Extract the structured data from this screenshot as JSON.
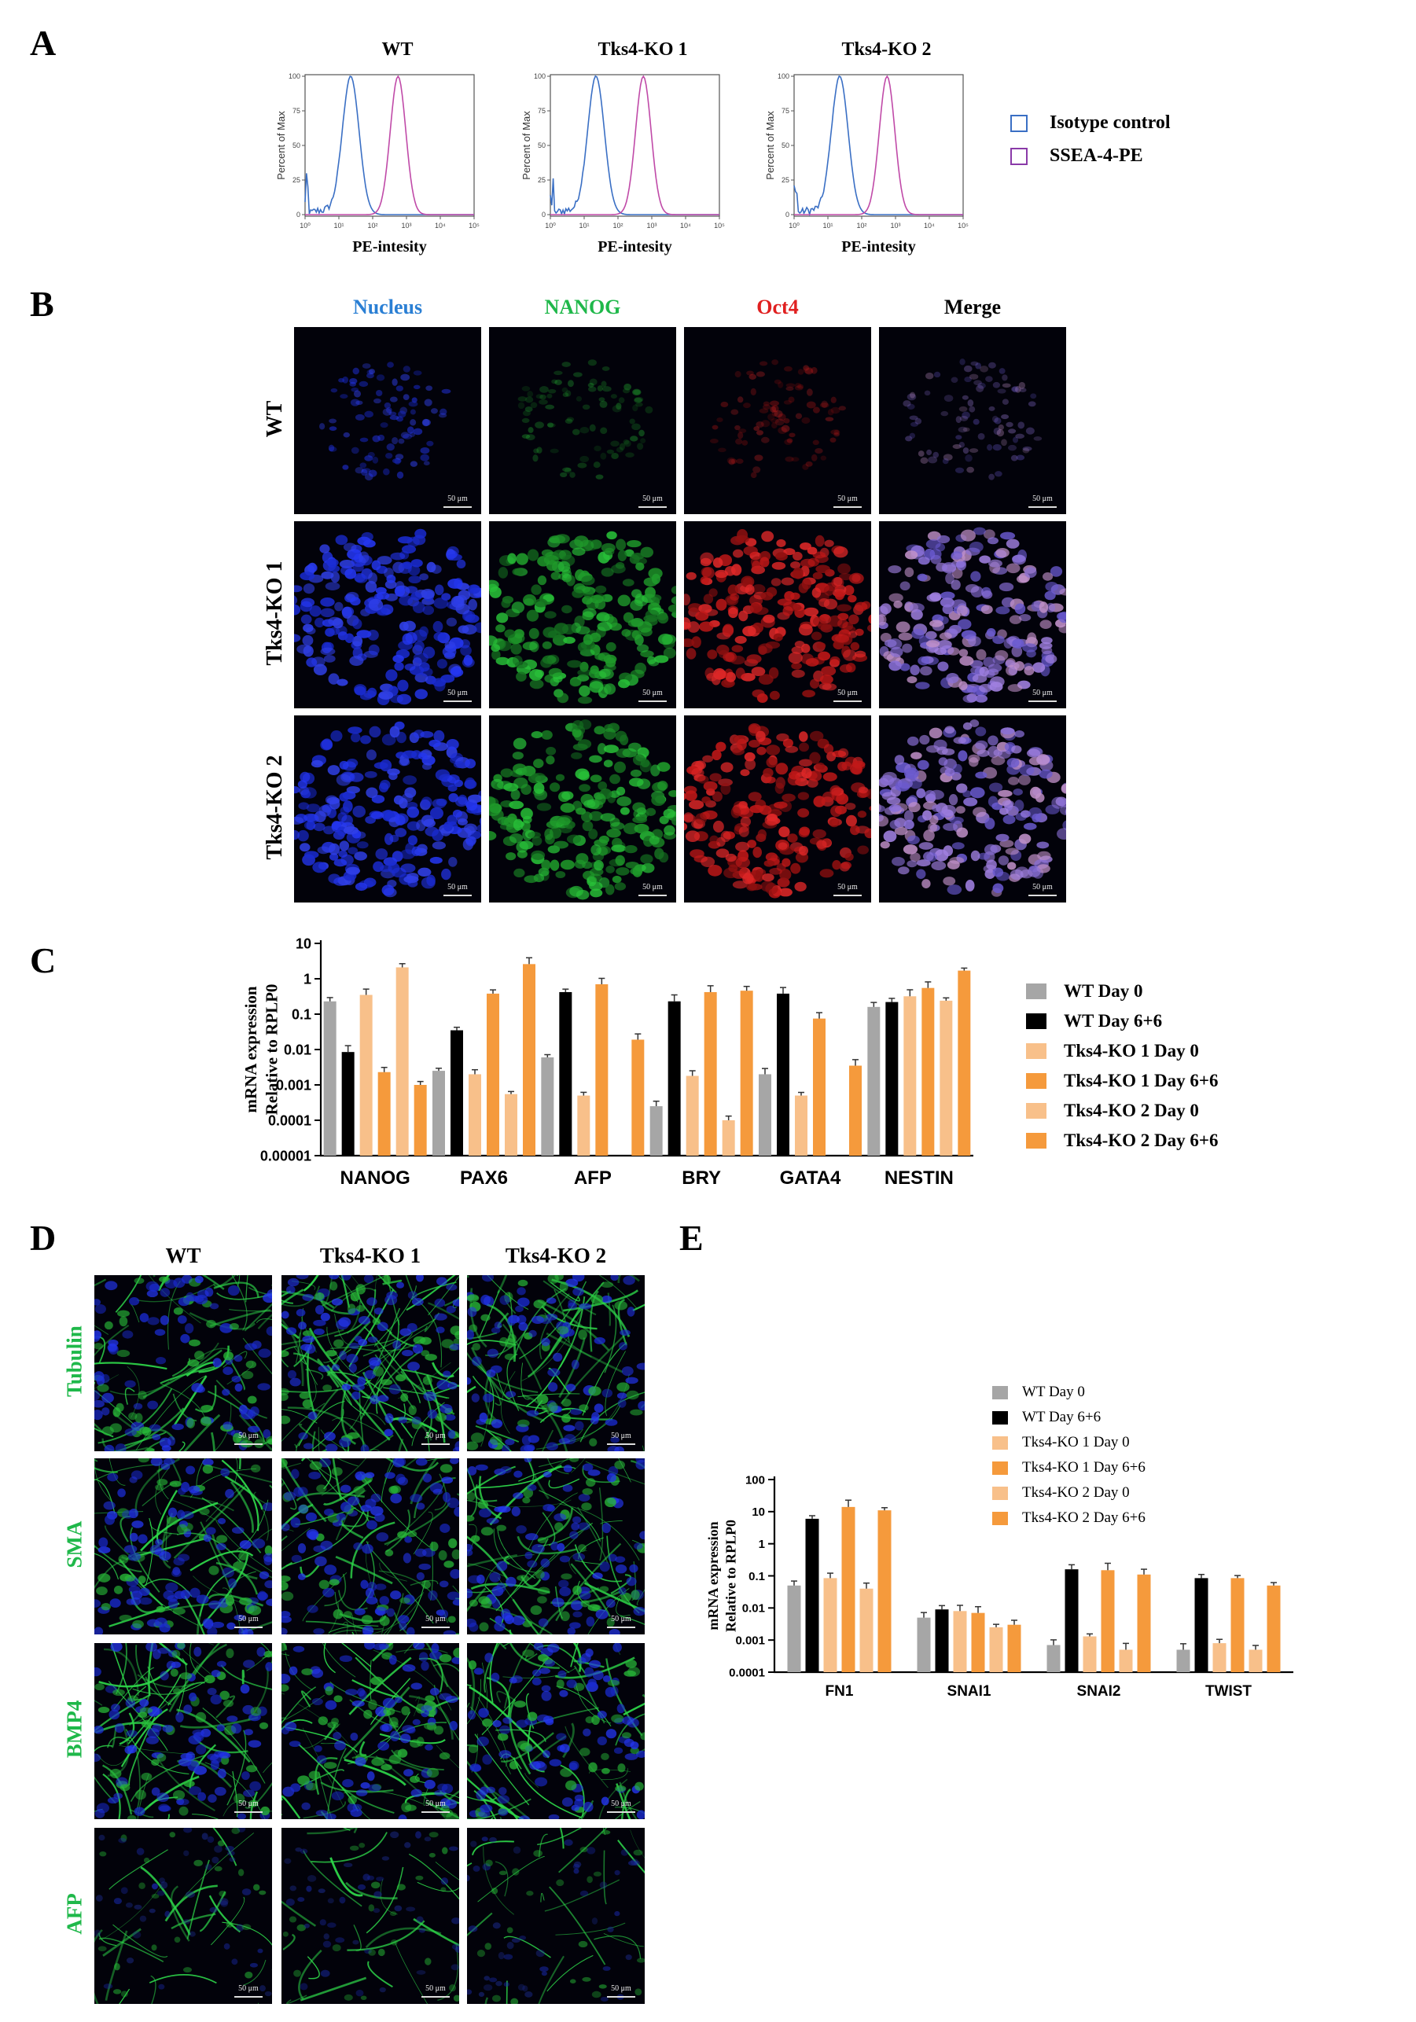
{
  "panels": {
    "a": "A",
    "b": "B",
    "c": "C",
    "d": "D",
    "e": "E"
  },
  "panel_a": {
    "plots": [
      {
        "title": "WT"
      },
      {
        "title": "Tks4-KO 1"
      },
      {
        "title": "Tks4-KO 2"
      }
    ],
    "ylabel": "Percent of Max",
    "xlabel": "PE-intesity",
    "yticks": [
      "100",
      "75",
      "50",
      "25",
      "0"
    ],
    "xticks": [
      "10⁰",
      "10¹",
      "10²",
      "10³",
      "10⁴",
      "10⁵"
    ],
    "legend": [
      {
        "label": "Isotype control",
        "color": "#3a6fc4"
      },
      {
        "label": "SSEA-4-PE",
        "color": "#8a3aa8"
      }
    ]
  },
  "panel_b": {
    "columns": [
      {
        "label": "Nucleus",
        "color": "#2a7fd4"
      },
      {
        "label": "NANOG",
        "color": "#1fb84a"
      },
      {
        "label": "Oct4",
        "color": "#e02020"
      },
      {
        "label": "Merge",
        "color": "#000000"
      }
    ],
    "rows": [
      "WT",
      "Tks4-KO 1",
      "Tks4-KO 2"
    ],
    "scale_label": "50 μm"
  },
  "panel_c": {
    "chart_data": {
      "type": "bar",
      "ylabel_line1": "mRNA expression",
      "ylabel_line2": "Relative to RPLP0",
      "yscale": "log",
      "ylim": [
        1e-05,
        10
      ],
      "yticks": [
        "10",
        "1",
        "0.1",
        "0.01",
        "0.001",
        "0.0001",
        "0.00001"
      ],
      "categories": [
        "NANOG",
        "PAX6",
        "AFP",
        "BRY",
        "GATA4",
        "NESTIN"
      ],
      "series": [
        {
          "name": "WT Day 0",
          "color": "#a6a6a6",
          "values": [
            0.23,
            0.0025,
            0.006,
            0.00025,
            0.002,
            0.16
          ]
        },
        {
          "name": "WT Day 6+6",
          "color": "#000000",
          "values": [
            0.0085,
            0.035,
            0.42,
            0.23,
            0.38,
            0.22
          ]
        },
        {
          "name": "Tks4-KO 1 Day 0",
          "color": "#f8c08a",
          "values": [
            0.35,
            0.002,
            0.0005,
            0.0018,
            0.0005,
            0.32
          ]
        },
        {
          "name": "Tks4-KO 1 Day 6+6",
          "color": "#f59a3c",
          "values": [
            0.0023,
            0.38,
            0.7,
            0.42,
            0.075,
            0.55
          ]
        },
        {
          "name": "Tks4-KO 2 Day 0",
          "color": "#f8c08a",
          "values": [
            2.1,
            0.00055,
            null,
            0.0001,
            null,
            0.24
          ]
        },
        {
          "name": "Tks4-KO 2 Day 6+6",
          "color": "#f59a3c",
          "values": [
            0.001,
            2.6,
            0.019,
            0.46,
            0.0035,
            1.7
          ]
        }
      ]
    }
  },
  "panel_d": {
    "columns": [
      "WT",
      "Tks4-KO 1",
      "Tks4-KO 2"
    ],
    "rows": [
      "Tubulin",
      "SMA",
      "BMP4",
      "AFP"
    ],
    "row_color": "#1fb84a",
    "scale_label": "50 μm"
  },
  "panel_e": {
    "chart_data": {
      "type": "bar",
      "ylabel_line1": "mRNA expression",
      "ylabel_line2": "Relative to RPLP0",
      "yscale": "log",
      "ylim": [
        0.0001,
        100
      ],
      "yticks": [
        "100",
        "10",
        "1",
        "0.1",
        "0.01",
        "0.001",
        "0.0001"
      ],
      "categories": [
        "FN1",
        "SNAI1",
        "SNAI2",
        "TWIST"
      ],
      "series": [
        {
          "name": "WT Day 0",
          "color": "#a6a6a6",
          "values": [
            0.05,
            0.005,
            0.0007,
            0.0005
          ]
        },
        {
          "name": "WT Day 6+6",
          "color": "#000000",
          "values": [
            6.0,
            0.009,
            0.16,
            0.085
          ]
        },
        {
          "name": "Tks4-KO 1 Day 0",
          "color": "#f8c08a",
          "values": [
            0.085,
            0.008,
            0.0013,
            0.0008
          ]
        },
        {
          "name": "Tks4-KO 1 Day 6+6",
          "color": "#f59a3c",
          "values": [
            14.0,
            0.007,
            0.15,
            0.085
          ]
        },
        {
          "name": "Tks4-KO 2 Day 0",
          "color": "#f8c08a",
          "values": [
            0.04,
            0.0025,
            0.0005,
            0.0005
          ]
        },
        {
          "name": "Tks4-KO 2  Day 6+6",
          "color": "#f59a3c",
          "values": [
            11.0,
            0.003,
            0.11,
            0.05
          ]
        }
      ]
    }
  }
}
